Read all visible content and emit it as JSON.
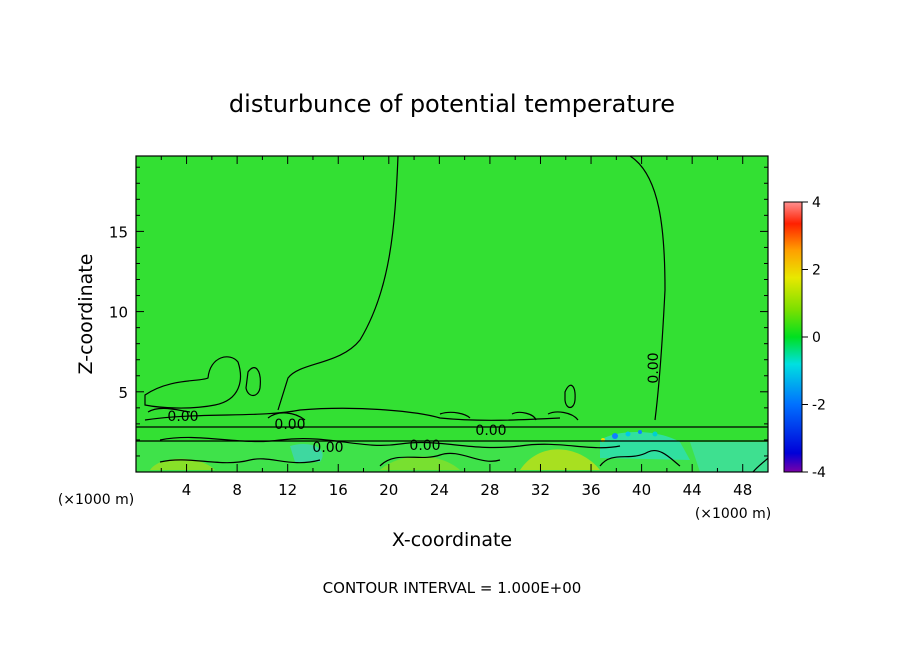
{
  "chart_data": {
    "type": "heatmap",
    "title": "disturbunce of potential temperature",
    "xlabel": "X-coordinate",
    "ylabel": "Z-coordinate",
    "x_unit_left": "(×1000 m)",
    "x_unit_right": "(×1000 m)",
    "xlim": [
      0,
      50
    ],
    "ylim": [
      0,
      19.7
    ],
    "x_ticks": [
      4,
      8,
      12,
      16,
      20,
      24,
      28,
      32,
      36,
      40,
      44,
      48
    ],
    "y_ticks": [
      5,
      10,
      15
    ],
    "colorbar": {
      "min": -4,
      "max": 4,
      "ticks": [
        4,
        2,
        0,
        -2,
        -4
      ],
      "colormap": [
        "#7a00a8",
        "#0000d8",
        "#0070ff",
        "#00e0e0",
        "#00e020",
        "#7ae000",
        "#e8e800",
        "#ffa000",
        "#ff2000",
        "#ff9090"
      ]
    },
    "background_value": 0,
    "background_color": "#33e033",
    "contour_labels": [
      "0.00",
      "0.00",
      "0.00",
      "0.00",
      "0.00",
      "0.00"
    ],
    "footer": "CONTOUR INTERVAL = 1.000E+00",
    "grid": false
  }
}
